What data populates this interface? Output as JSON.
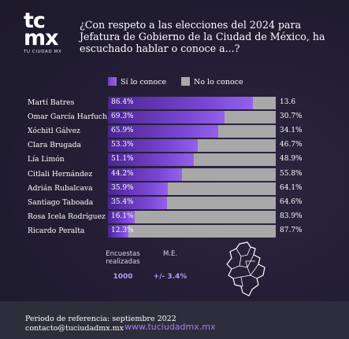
{
  "logo": {
    "big1": "tc",
    "big2": "mx",
    "sub": "TU CIUDAD MX"
  },
  "title": "¿Con respeto a las elecciones del 2024 para Jefatura de Gobierno de la Ciudad de México, ha escuchado hablar o conoce a...?",
  "legend": {
    "si": "Sí lo conoce",
    "no": "No lo conoce"
  },
  "colors": {
    "si": "#7b48d6",
    "no": "#a8a8a8",
    "accent": "#a77df0",
    "background": "#211c30"
  },
  "chart_data": {
    "type": "bar",
    "stacked": true,
    "orientation": "horizontal",
    "title": "¿Con respeto a las elecciones del 2024 para Jefatura de Gobierno de la Ciudad de México, ha escuchado hablar o conoce a...?",
    "categories": [
      "Martí Batres",
      "Omar García Harfuch",
      "Xóchitl Gálvez",
      "Clara Brugada",
      "Lía Limón",
      "Citlali Hernández",
      "Adrián Rubalcava",
      "Santiago Taboada",
      "Rosa Icela Rodríguez",
      "Ricardo Peralta"
    ],
    "series": [
      {
        "name": "Sí lo conoce",
        "values": [
          86.4,
          69.3,
          65.9,
          53.3,
          51.1,
          44.2,
          35.9,
          35.4,
          16.1,
          12.3
        ]
      },
      {
        "name": "No lo conoce",
        "values": [
          13.6,
          30.7,
          34.1,
          46.7,
          48.9,
          55.8,
          64.1,
          64.6,
          83.9,
          87.7
        ]
      }
    ],
    "si_labels": [
      "86.4%",
      "69.3%",
      "65.9%",
      "53.3%",
      "51.1%",
      "44.2%",
      "35.9%",
      "35.4%",
      "16.1%",
      "12.3%"
    ],
    "no_labels": [
      "13.6",
      "30.7%",
      "34.1%",
      "46.7%",
      "48.9%",
      "55.8%",
      "64.1%",
      "64.6%",
      "83.9%",
      "87.7%"
    ],
    "xlim": [
      0,
      100
    ],
    "legend_position": "top"
  },
  "stats": {
    "encuestas_label": "Encuestas realizadas",
    "encuestas_value": "1000",
    "me_label": "M.E.",
    "me_value": "+/- 3.4%"
  },
  "map_icon": "cdmx-map-outline",
  "footer": {
    "periodo": "Periodo de referencia: septiembre 2022",
    "contacto": "contacto@tuciudadmx.mx",
    "web": "www.tuciudadmx.mx"
  }
}
